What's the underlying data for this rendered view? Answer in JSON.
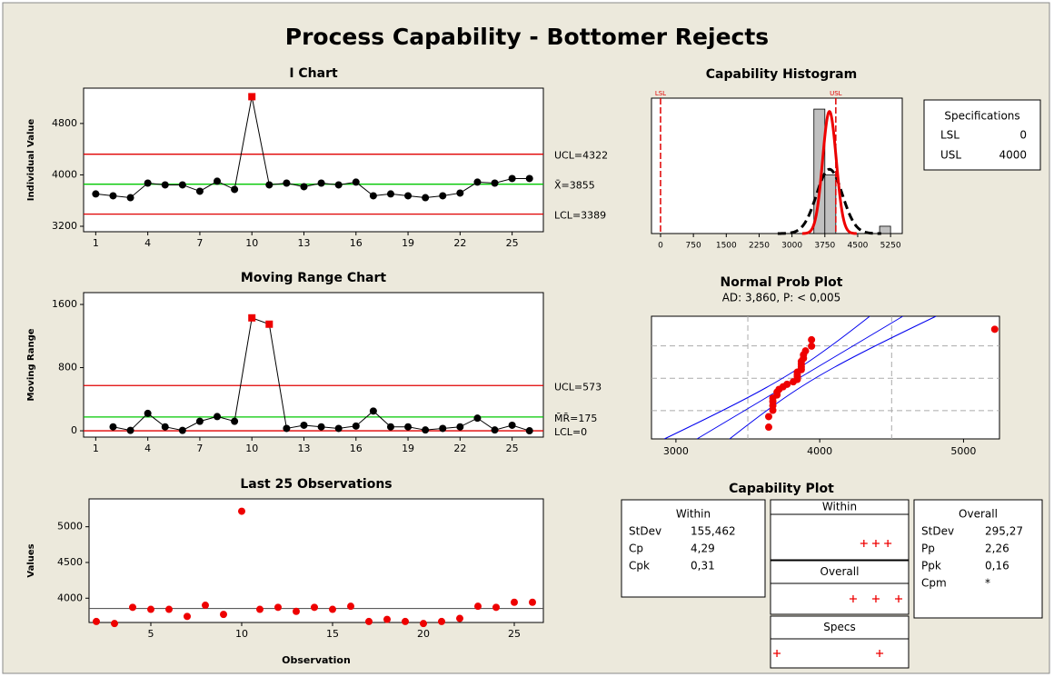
{
  "title": "Process Capability - Bottomer Rejects",
  "chart_data": [
    {
      "type": "control",
      "title": "I Chart",
      "ylabel": "Individual Value",
      "x": [
        1,
        2,
        3,
        4,
        5,
        6,
        7,
        8,
        9,
        10,
        11,
        12,
        13,
        14,
        15,
        16,
        17,
        18,
        19,
        20,
        21,
        22,
        23,
        24,
        25,
        26
      ],
      "values": [
        3703,
        3674,
        3645,
        3872,
        3844,
        3844,
        3745,
        3901,
        3773,
        5217,
        3844,
        3872,
        3816,
        3872,
        3844,
        3887,
        3674,
        3703,
        3674,
        3645,
        3674,
        3717,
        3887,
        3872,
        3943,
        3943
      ],
      "xlim": [
        0.3,
        26.8
      ],
      "ylim": [
        3115,
        5350
      ],
      "xticks": [
        1,
        4,
        7,
        10,
        13,
        16,
        19,
        22,
        25
      ],
      "yticks": [
        3200,
        4000,
        4800
      ],
      "limits": [
        {
          "value": 4322,
          "label": "UCL=4322",
          "color": "#e00000"
        },
        {
          "value": 3855,
          "label": "X̄=3855",
          "color": "#00c800"
        },
        {
          "value": 3389,
          "label": "LCL=3389",
          "color": "#e00000"
        }
      ],
      "flagged_x": [
        10
      ],
      "color": "#000000",
      "flag_color": "#ee0000"
    },
    {
      "type": "control",
      "title": "Moving Range Chart",
      "ylabel": "Moving Range",
      "x": [
        2,
        3,
        4,
        5,
        6,
        7,
        8,
        9,
        10,
        11,
        12,
        13,
        14,
        15,
        16,
        17,
        18,
        19,
        20,
        21,
        22,
        23,
        24,
        25,
        26
      ],
      "values": [
        50,
        5,
        220,
        50,
        5,
        120,
        180,
        120,
        1430,
        1350,
        30,
        70,
        50,
        30,
        60,
        250,
        50,
        50,
        10,
        30,
        50,
        160,
        10,
        70,
        0
      ],
      "xlim": [
        0.3,
        26.8
      ],
      "ylim": [
        -80,
        1750
      ],
      "xticks": [
        1,
        4,
        7,
        10,
        13,
        16,
        19,
        22,
        25
      ],
      "yticks": [
        0,
        800,
        1600
      ],
      "limits": [
        {
          "value": 573,
          "label": "UCL=573",
          "color": "#e00000"
        },
        {
          "value": 175,
          "label": "M̄R̄=175",
          "color": "#00c800"
        },
        {
          "value": 0,
          "label": "LCL=0",
          "color": "#e00000"
        }
      ],
      "flagged_x": [
        10,
        11
      ],
      "color": "#000000",
      "flag_color": "#ee0000"
    },
    {
      "type": "scatter",
      "title": "Last 25 Observations",
      "xlabel": "Observation",
      "ylabel": "Values",
      "x": [
        2,
        3,
        4,
        5,
        6,
        7,
        8,
        9,
        10,
        11,
        12,
        13,
        14,
        15,
        16,
        17,
        18,
        19,
        20,
        21,
        22,
        23,
        24,
        25,
        26
      ],
      "values": [
        3674,
        3645,
        3872,
        3844,
        3844,
        3745,
        3901,
        3773,
        5217,
        3844,
        3872,
        3816,
        3872,
        3844,
        3887,
        3674,
        3703,
        3674,
        3645,
        3674,
        3717,
        3887,
        3872,
        3943,
        3943
      ],
      "center": 3855,
      "xlim": [
        1.6,
        26.6
      ],
      "ylim": [
        3660,
        5390
      ],
      "xticks": [
        5,
        10,
        15,
        20,
        25
      ],
      "yticks": [
        4000,
        4500,
        5000
      ],
      "color": "#ee0000"
    },
    {
      "type": "histogram",
      "title": "Capability Histogram",
      "bins": [
        3500,
        3750,
        4000,
        4250,
        4500,
        4750,
        5000,
        5250,
        5500
      ],
      "counts": [
        17,
        8,
        0,
        0,
        0,
        0,
        1,
        0
      ],
      "color": "#c0c0c0",
      "mean": 3855,
      "xlim": [
        -207,
        5517
      ],
      "ylim": [
        0,
        18.5
      ],
      "xticks": [
        0,
        750,
        1500,
        2250,
        3000,
        3750,
        4500,
        5250
      ],
      "spec_lines": [
        {
          "value": 0,
          "label": "LSL"
        },
        {
          "value": 4000,
          "label": "USL"
        }
      ],
      "spec_title": "Specifications",
      "within_color": "#ee0000",
      "overall_color": "#000000"
    },
    {
      "type": "probability",
      "title": "Normal Prob Plot",
      "subtitle": "AD: 3,860, P: < 0,005",
      "xlim": [
        2830,
        5250
      ],
      "xticks": [
        3000,
        4000,
        5000
      ],
      "xgrid": [
        3500,
        4500
      ],
      "zlim": [
        -2.4,
        2.45
      ],
      "zgrid": [
        -1.28,
        0,
        1.28
      ],
      "line_color": "#0000ee",
      "point_color": "#ee0000"
    },
    {
      "type": "capability",
      "title": "Capability Plot",
      "xlim": [
        -250,
        5130
      ],
      "within": {
        "title": "Within",
        "stats": [
          {
            "name": "StDev",
            "value": 155.462,
            "label": "155,462"
          },
          {
            "name": "Cp",
            "value": 4.29,
            "label": "4,29"
          },
          {
            "name": "Cpk",
            "value": 0.31,
            "label": "0,31"
          }
        ]
      },
      "overall": {
        "title": "Overall",
        "stats": [
          {
            "name": "StDev",
            "value": 295.27,
            "label": "295,27"
          },
          {
            "name": "Pp",
            "value": 2.26,
            "label": "2,26"
          },
          {
            "name": "Ppk",
            "value": 0.16,
            "label": "0,16"
          },
          {
            "name": "Cpm",
            "label": "*"
          }
        ]
      },
      "specs_title": "Specs",
      "interval_color": "#ee0000",
      "spec_color": "#0000ee"
    }
  ]
}
